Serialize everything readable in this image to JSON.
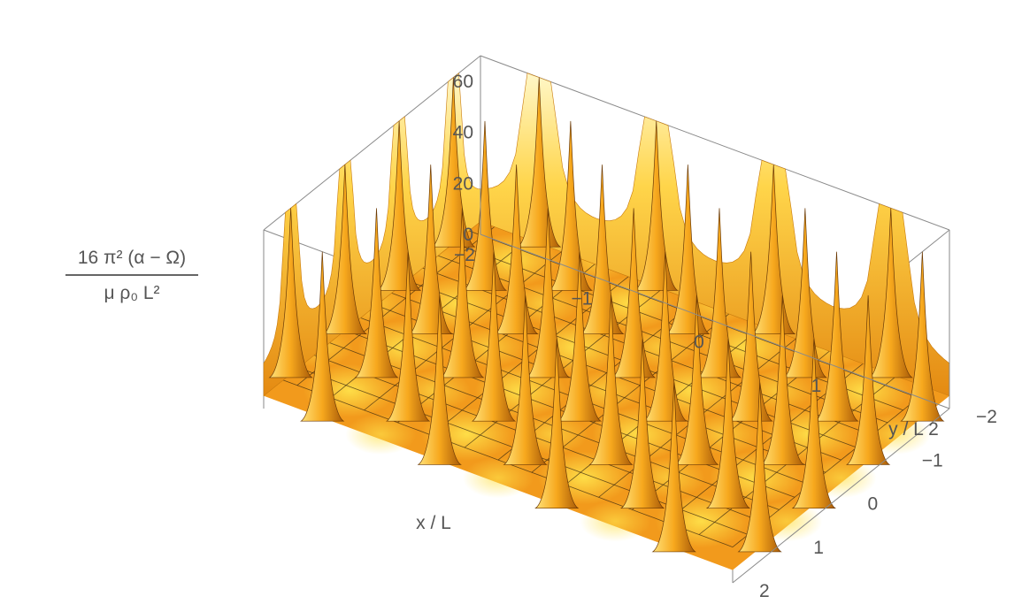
{
  "chart_data": {
    "type": "surface3d",
    "title": "",
    "xlabel": "x / L",
    "ylabel": "y / L",
    "zlabel": {
      "numerator": "16 π² (α − Ω)",
      "denominator": "μ ρ₀ L²"
    },
    "xlim": [
      -2,
      2
    ],
    "ylim": [
      -2,
      2
    ],
    "zlim": [
      0,
      70
    ],
    "x_ticks": [
      "−2",
      "−1",
      "0",
      "1",
      "2"
    ],
    "y_ticks": [
      "−2",
      "−1",
      "0",
      "1",
      "2"
    ],
    "z_ticks": [
      "0",
      "20",
      "40",
      "60"
    ],
    "mesh": "on",
    "surface_color": "#f6a623",
    "spikes": {
      "description": "sharp peaks at lattice points (x,y) = (n/2, m/2) with n+m odd",
      "peak_value": 70,
      "background_level": 5
    }
  }
}
